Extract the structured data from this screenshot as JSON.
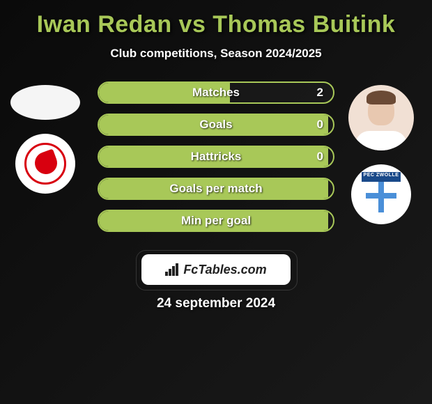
{
  "title": "Iwan Redan vs Thomas Buitink",
  "subtitle": "Club competitions, Season 2024/2025",
  "date": "24 september 2024",
  "brand": "FcTables.com",
  "colors": {
    "accent": "#a8c858",
    "title": "#a8c858",
    "background": "#0a0a0a",
    "white": "#ffffff"
  },
  "player_left": {
    "name": "Iwan Redan",
    "club": "Almere City",
    "club_badge_color": "#d8000f"
  },
  "player_right": {
    "name": "Thomas Buitink",
    "club": "PEC Zwolle",
    "club_badge_color": "#4a8fd8",
    "zwolle_label": "PEC ZWOLLE"
  },
  "stats": [
    {
      "label": "Matches",
      "right_value": "2",
      "fill_pct": 56
    },
    {
      "label": "Goals",
      "right_value": "0",
      "fill_pct": 98
    },
    {
      "label": "Hattricks",
      "right_value": "0",
      "fill_pct": 98
    },
    {
      "label": "Goals per match",
      "right_value": "",
      "fill_pct": 98
    },
    {
      "label": "Min per goal",
      "right_value": "",
      "fill_pct": 98
    }
  ]
}
